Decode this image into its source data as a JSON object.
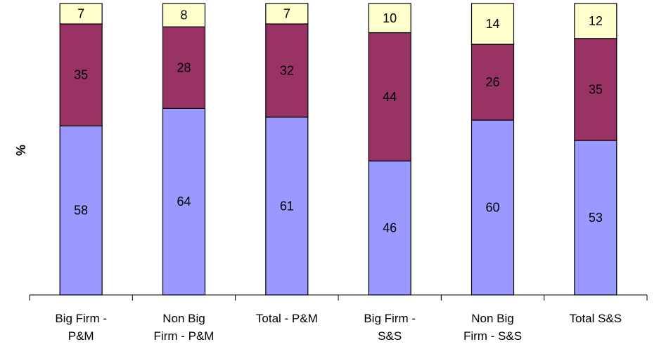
{
  "chart_data": {
    "type": "bar",
    "stacked": true,
    "title": "",
    "xlabel": "",
    "ylabel": "%",
    "ylim": [
      0,
      100
    ],
    "grid": false,
    "categories": [
      [
        "Big Firm -",
        "P&M"
      ],
      [
        "Non Big",
        "Firm - P&M"
      ],
      [
        "Total - P&M"
      ],
      [
        "Big Firm -",
        "S&S"
      ],
      [
        "Non Big",
        "Firm - S&S"
      ],
      [
        "Total S&S"
      ]
    ],
    "series": [
      {
        "color": "#9999ff",
        "values": [
          58,
          64,
          61,
          46,
          60,
          53
        ]
      },
      {
        "color": "#993366",
        "values": [
          35,
          28,
          32,
          44,
          26,
          35
        ]
      },
      {
        "color": "#ffffcc",
        "values": [
          7,
          8,
          7,
          10,
          14,
          12
        ]
      }
    ]
  }
}
